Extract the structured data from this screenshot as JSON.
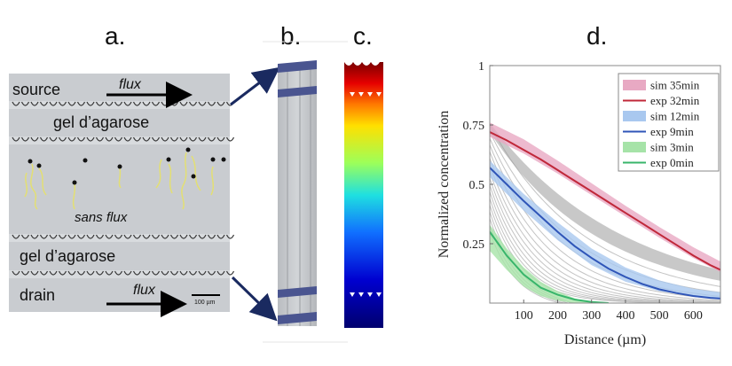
{
  "panels": {
    "a": "a.",
    "b": "b.",
    "c": "c.",
    "d": "d."
  },
  "micrograph": {
    "source": "source",
    "flux_top": "flux",
    "gel_top": "gel d’agarose",
    "sans_flux": "sans flux",
    "gel_bottom": "gel d’agarose",
    "drain": "drain",
    "flux_bottom": "flux",
    "scalebar": "100 µm"
  },
  "chart_data": {
    "type": "line",
    "xlabel": "Distance (µm)",
    "ylabel": "Normalized concentration",
    "xlim": [
      0,
      680
    ],
    "ylim": [
      0,
      1
    ],
    "xticks": [
      100,
      200,
      300,
      400,
      500,
      600
    ],
    "yticks": [
      0.25,
      0.5,
      0.75,
      1
    ],
    "ytick_labels": [
      "0.25",
      "0.5",
      "0.75",
      "1"
    ],
    "legend_position": "top-right",
    "legend": [
      {
        "label": "sim 35min",
        "kind": "band",
        "color": "#e8a9c3"
      },
      {
        "label": "exp 32min",
        "kind": "line",
        "color": "#c0283a"
      },
      {
        "label": "sim 12min",
        "kind": "band",
        "color": "#a9c8ef"
      },
      {
        "label": "exp 9min",
        "kind": "line",
        "color": "#2f55b8"
      },
      {
        "label": "sim 3min",
        "kind": "band",
        "color": "#a6e3a8"
      },
      {
        "label": "exp 0min",
        "kind": "line",
        "color": "#38b56b"
      }
    ],
    "series": [
      {
        "name": "exp 32min",
        "color": "#c0283a",
        "x": [
          0,
          50,
          100,
          150,
          200,
          250,
          300,
          350,
          400,
          450,
          500,
          550,
          600,
          650,
          680
        ],
        "y": [
          0.72,
          0.685,
          0.645,
          0.605,
          0.56,
          0.515,
          0.47,
          0.425,
          0.38,
          0.335,
          0.29,
          0.245,
          0.2,
          0.16,
          0.14
        ]
      },
      {
        "name": "exp 9min",
        "color": "#2f55b8",
        "x": [
          0,
          50,
          100,
          150,
          200,
          250,
          300,
          350,
          400,
          450,
          500,
          550,
          600,
          650,
          680
        ],
        "y": [
          0.57,
          0.5,
          0.43,
          0.365,
          0.3,
          0.24,
          0.19,
          0.145,
          0.11,
          0.08,
          0.058,
          0.042,
          0.03,
          0.022,
          0.019
        ]
      },
      {
        "name": "exp 0min",
        "color": "#38b56b",
        "x": [
          0,
          50,
          100,
          150,
          200,
          250,
          300,
          350
        ],
        "y": [
          0.3,
          0.2,
          0.12,
          0.065,
          0.035,
          0.015,
          0.005,
          0.0
        ]
      }
    ],
    "bands": [
      {
        "name": "sim 35min",
        "color": "#e8a9c3",
        "x": [
          0,
          100,
          200,
          300,
          400,
          500,
          600,
          680
        ],
        "lo": [
          0.7,
          0.63,
          0.545,
          0.455,
          0.365,
          0.275,
          0.19,
          0.13
        ],
        "hi": [
          0.76,
          0.69,
          0.6,
          0.505,
          0.41,
          0.32,
          0.235,
          0.175
        ]
      },
      {
        "name": "sim 12min",
        "color": "#a9c8ef",
        "x": [
          0,
          100,
          200,
          300,
          400,
          500,
          600,
          680
        ],
        "lo": [
          0.53,
          0.39,
          0.265,
          0.16,
          0.09,
          0.05,
          0.03,
          0.02
        ],
        "hi": [
          0.6,
          0.46,
          0.34,
          0.23,
          0.15,
          0.095,
          0.06,
          0.045
        ]
      },
      {
        "name": "sim 3min",
        "color": "#a6e3a8",
        "x": [
          0,
          50,
          100,
          150,
          200,
          250,
          300
        ],
        "lo": [
          0.22,
          0.14,
          0.07,
          0.03,
          0.01,
          0.0,
          0.0
        ],
        "hi": [
          0.33,
          0.23,
          0.15,
          0.09,
          0.05,
          0.02,
          0.0
        ]
      }
    ]
  }
}
